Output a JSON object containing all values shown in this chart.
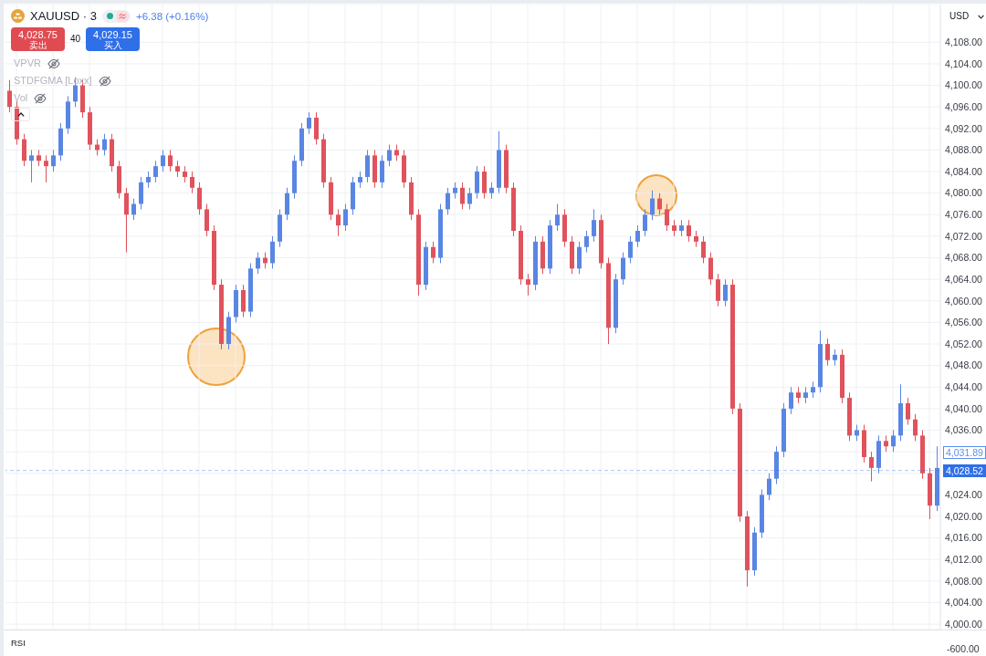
{
  "chart_data": {
    "type": "candlestick",
    "title": "XAUUSD · 3",
    "ylabel": "USD",
    "categories": [
      null,
      null,
      null,
      null,
      null,
      null,
      null,
      null,
      null,
      null,
      null,
      null,
      null,
      null,
      null,
      null,
      null,
      null,
      null,
      null,
      null,
      null,
      null,
      null,
      null,
      null,
      null,
      null,
      null,
      null,
      null,
      null,
      null,
      null,
      null,
      null,
      null,
      null,
      null,
      null,
      null,
      null,
      null,
      null,
      null,
      null,
      null,
      null,
      null,
      null,
      null,
      null,
      null,
      null,
      null,
      null,
      null,
      null,
      null,
      null,
      null,
      null,
      null,
      null,
      null,
      null,
      null,
      null,
      null,
      null,
      null,
      null,
      null,
      null,
      null,
      null,
      null,
      null,
      null,
      null,
      null,
      null,
      null,
      null,
      null,
      null,
      null,
      null,
      null,
      null,
      null,
      null,
      null,
      null,
      null,
      null,
      null,
      null,
      null,
      null,
      null,
      null,
      null,
      null,
      null,
      null,
      null,
      null,
      null,
      null,
      null,
      null,
      null,
      null,
      null,
      null,
      null,
      null,
      null,
      null,
      null,
      null,
      null,
      null,
      null,
      null,
      null,
      null
    ],
    "ohlc": [
      [
        4099,
        4101,
        4095,
        4096
      ],
      [
        4096,
        4097,
        4089,
        4090
      ],
      [
        4090,
        4091,
        4085,
        4086
      ],
      [
        4086,
        4088,
        4082,
        4087
      ],
      [
        4087,
        4088,
        4085,
        4086
      ],
      [
        4086,
        4087,
        4082,
        4085
      ],
      [
        4085,
        4088,
        4084,
        4087
      ],
      [
        4087,
        4093,
        4086,
        4092
      ],
      [
        4092,
        4098,
        4091,
        4097
      ],
      [
        4097,
        4101.5,
        4096,
        4100
      ],
      [
        4100,
        4101,
        4094,
        4095
      ],
      [
        4095,
        4096,
        4088,
        4089
      ],
      [
        4089,
        4090,
        4087,
        4088
      ],
      [
        4088,
        4091,
        4087,
        4090
      ],
      [
        4090,
        4091,
        4084,
        4085
      ],
      [
        4085,
        4086,
        4079,
        4080
      ],
      [
        4080,
        4081,
        4069,
        4076
      ],
      [
        4076,
        4079,
        4075,
        4078
      ],
      [
        4078,
        4083,
        4077,
        4082
      ],
      [
        4082,
        4084,
        4081,
        4083
      ],
      [
        4083,
        4086,
        4082,
        4085
      ],
      [
        4085,
        4088,
        4084,
        4087
      ],
      [
        4087,
        4088,
        4084,
        4085
      ],
      [
        4085,
        4086,
        4083,
        4084
      ],
      [
        4084,
        4085,
        4082,
        4083
      ],
      [
        4083,
        4084,
        4080,
        4081
      ],
      [
        4081,
        4082,
        4076,
        4077
      ],
      [
        4077,
        4078,
        4072,
        4073
      ],
      [
        4073,
        4074,
        4062,
        4063
      ],
      [
        4063,
        4064,
        4051,
        4052
      ],
      [
        4052,
        4058,
        4051,
        4057
      ],
      [
        4057,
        4063,
        4056,
        4062
      ],
      [
        4062,
        4063,
        4057,
        4058
      ],
      [
        4058,
        4067,
        4057,
        4066
      ],
      [
        4066,
        4069,
        4065,
        4068
      ],
      [
        4068,
        4069,
        4066,
        4067
      ],
      [
        4067,
        4072,
        4066,
        4071
      ],
      [
        4071,
        4077,
        4070,
        4076
      ],
      [
        4076,
        4081,
        4075,
        4080
      ],
      [
        4080,
        4087,
        4079,
        4086
      ],
      [
        4086,
        4093,
        4085,
        4092
      ],
      [
        4092,
        4095,
        4091,
        4094
      ],
      [
        4094,
        4095,
        4089,
        4090
      ],
      [
        4090,
        4091,
        4081,
        4082
      ],
      [
        4082,
        4083,
        4075,
        4076
      ],
      [
        4076,
        4077,
        4072,
        4074
      ],
      [
        4074,
        4078,
        4073,
        4077
      ],
      [
        4077,
        4083,
        4076,
        4082
      ],
      [
        4082,
        4084,
        4081,
        4083
      ],
      [
        4083,
        4088,
        4082,
        4087
      ],
      [
        4087,
        4088,
        4081,
        4082
      ],
      [
        4082,
        4087,
        4081,
        4086
      ],
      [
        4086,
        4089,
        4085,
        4088
      ],
      [
        4088,
        4089,
        4086,
        4087
      ],
      [
        4087,
        4088,
        4081,
        4082
      ],
      [
        4082,
        4083,
        4075,
        4076
      ],
      [
        4076,
        4077,
        4061,
        4063
      ],
      [
        4063,
        4071,
        4062,
        4070
      ],
      [
        4070,
        4071,
        4067,
        4068
      ],
      [
        4068,
        4078,
        4067,
        4077
      ],
      [
        4077,
        4081,
        4076,
        4080
      ],
      [
        4080,
        4082,
        4079,
        4081
      ],
      [
        4081,
        4082,
        4077,
        4078
      ],
      [
        4078,
        4081,
        4077,
        4080
      ],
      [
        4080,
        4085,
        4079,
        4084
      ],
      [
        4084,
        4085,
        4079,
        4080
      ],
      [
        4080,
        4082,
        4079,
        4081
      ],
      [
        4081,
        4091.5,
        4080,
        4088
      ],
      [
        4088,
        4089,
        4080,
        4081
      ],
      [
        4081,
        4082,
        4072,
        4073
      ],
      [
        4073,
        4074,
        4063,
        4064
      ],
      [
        4064,
        4065,
        4061,
        4063
      ],
      [
        4063,
        4072,
        4062,
        4071
      ],
      [
        4071,
        4072,
        4065,
        4066
      ],
      [
        4066,
        4075,
        4065,
        4074
      ],
      [
        4074,
        4078,
        4073,
        4076
      ],
      [
        4076,
        4077,
        4070,
        4071
      ],
      [
        4071,
        4072,
        4065,
        4066
      ],
      [
        4066,
        4071,
        4065,
        4070
      ],
      [
        4070,
        4073,
        4069,
        4072
      ],
      [
        4072,
        4077,
        4071,
        4075
      ],
      [
        4075,
        4076,
        4066,
        4067
      ],
      [
        4067,
        4068,
        4052,
        4055
      ],
      [
        4055,
        4065,
        4054,
        4064
      ],
      [
        4064,
        4069,
        4063,
        4068
      ],
      [
        4068,
        4072,
        4067,
        4071
      ],
      [
        4071,
        4074,
        4070,
        4073
      ],
      [
        4073,
        4077,
        4072,
        4076
      ],
      [
        4076,
        4080.5,
        4075,
        4079
      ],
      [
        4079,
        4080,
        4076,
        4077
      ],
      [
        4077,
        4078,
        4073,
        4074
      ],
      [
        4074,
        4075,
        4072,
        4073
      ],
      [
        4073,
        4075,
        4072,
        4074
      ],
      [
        4074,
        4075,
        4071,
        4072
      ],
      [
        4072,
        4073,
        4070,
        4071
      ],
      [
        4071,
        4072,
        4067,
        4068
      ],
      [
        4068,
        4069,
        4063,
        4064
      ],
      [
        4064,
        4065,
        4059,
        4060
      ],
      [
        4060,
        4064,
        4059,
        4063
      ],
      [
        4063,
        4064,
        4039,
        4040
      ],
      [
        4040,
        4041,
        4019,
        4020
      ],
      [
        4020,
        4021,
        4007,
        4010
      ],
      [
        4010,
        4018,
        4009,
        4017
      ],
      [
        4017,
        4025,
        4016,
        4024
      ],
      [
        4024,
        4028,
        4023,
        4027
      ],
      [
        4027,
        4033,
        4026,
        4032
      ],
      [
        4032,
        4041,
        4031,
        4040
      ],
      [
        4040,
        4044,
        4039,
        4043
      ],
      [
        4043,
        4044,
        4041,
        4042
      ],
      [
        4042,
        4044,
        4041,
        4043
      ],
      [
        4043,
        4045,
        4042,
        4044
      ],
      [
        4044,
        4054.5,
        4043,
        4052
      ],
      [
        4052,
        4053,
        4048,
        4049
      ],
      [
        4049,
        4051,
        4048,
        4050
      ],
      [
        4050,
        4051,
        4041,
        4042
      ],
      [
        4042,
        4043,
        4034,
        4035
      ],
      [
        4035,
        4037,
        4034,
        4036
      ],
      [
        4036,
        4037,
        4030,
        4031
      ],
      [
        4031,
        4032,
        4026.5,
        4029
      ],
      [
        4029,
        4035,
        4028,
        4034
      ],
      [
        4034,
        4035,
        4032,
        4033
      ],
      [
        4033,
        4036,
        4032,
        4035
      ],
      [
        4035,
        4044.5,
        4034,
        4041
      ],
      [
        4041,
        4042,
        4037,
        4038
      ],
      [
        4038,
        4039,
        4034,
        4035
      ],
      [
        4035,
        4036,
        4027,
        4028
      ],
      [
        4028,
        4029,
        4019.5,
        4022
      ],
      [
        4022,
        4033,
        4021,
        4029
      ]
    ],
    "colors": [
      "#e0525c",
      "#e0525c",
      "#e0525c",
      "#5a86e3",
      "#e0525c",
      "#e0525c",
      "#5a86e3",
      "#5a86e3",
      "#5a86e3",
      "#5a86e3",
      "#e0525c",
      "#e0525c",
      "#e0525c",
      "#5a86e3",
      "#e0525c",
      "#e0525c",
      "#e0525c",
      "#5a86e3",
      "#5a86e3",
      "#5a86e3",
      "#5a86e3",
      "#5a86e3",
      "#e0525c",
      "#e0525c",
      "#e0525c",
      "#e0525c",
      "#e0525c",
      "#e0525c",
      "#e0525c",
      "#e0525c",
      "#5a86e3",
      "#5a86e3",
      "#e0525c",
      "#5a86e3",
      "#5a86e3",
      "#e0525c",
      "#5a86e3",
      "#5a86e3",
      "#5a86e3",
      "#5a86e3",
      "#5a86e3",
      "#5a86e3",
      "#e0525c",
      "#e0525c",
      "#e0525c",
      "#e0525c",
      "#5a86e3",
      "#5a86e3",
      "#5a86e3",
      "#5a86e3",
      "#e0525c",
      "#5a86e3",
      "#5a86e3",
      "#e0525c",
      "#e0525c",
      "#e0525c",
      "#e0525c",
      "#5a86e3",
      "#e0525c",
      "#5a86e3",
      "#5a86e3",
      "#5a86e3",
      "#e0525c",
      "#5a86e3",
      "#5a86e3",
      "#e0525c",
      "#5a86e3",
      "#5a86e3",
      "#e0525c",
      "#e0525c",
      "#e0525c",
      "#e0525c",
      "#5a86e3",
      "#e0525c",
      "#5a86e3",
      "#5a86e3",
      "#e0525c",
      "#e0525c",
      "#5a86e3",
      "#5a86e3",
      "#5a86e3",
      "#e0525c",
      "#e0525c",
      "#5a86e3",
      "#5a86e3",
      "#5a86e3",
      "#5a86e3",
      "#5a86e3",
      "#5a86e3",
      "#e0525c",
      "#e0525c",
      "#e0525c",
      "#5a86e3",
      "#e0525c",
      "#e0525c",
      "#e0525c",
      "#e0525c",
      "#e0525c",
      "#5a86e3",
      "#e0525c",
      "#e0525c",
      "#e0525c",
      "#5a86e3",
      "#5a86e3",
      "#5a86e3",
      "#5a86e3",
      "#5a86e3",
      "#5a86e3",
      "#e0525c",
      "#5a86e3",
      "#5a86e3",
      "#5a86e3",
      "#e0525c",
      "#5a86e3",
      "#e0525c",
      "#e0525c",
      "#5a86e3",
      "#e0525c",
      "#e0525c",
      "#5a86e3",
      "#e0525c",
      "#5a86e3",
      "#5a86e3",
      "#e0525c",
      "#e0525c",
      "#e0525c",
      "#e0525c",
      "#5a86e3"
    ],
    "ylim": [
      3999,
      4115
    ],
    "yticks": [
      {
        "value": 4000,
        "label": "4,000.00"
      },
      {
        "value": 4004,
        "label": "4,004.00"
      },
      {
        "value": 4008,
        "label": "4,008.00"
      },
      {
        "value": 4012,
        "label": "4,012.00"
      },
      {
        "value": 4016,
        "label": "4,016.00"
      },
      {
        "value": 4020,
        "label": "4,020.00"
      },
      {
        "value": 4024,
        "label": "4,024.00"
      },
      {
        "value": 4028,
        "label": null
      },
      {
        "value": 4032,
        "label": null
      },
      {
        "value": 4036,
        "label": "4,036.00"
      },
      {
        "value": 4040,
        "label": "4,040.00"
      },
      {
        "value": 4044,
        "label": "4,044.00"
      },
      {
        "value": 4048,
        "label": "4,048.00"
      },
      {
        "value": 4052,
        "label": "4,052.00"
      },
      {
        "value": 4056,
        "label": "4,056.00"
      },
      {
        "value": 4060,
        "label": "4,060.00"
      },
      {
        "value": 4064,
        "label": "4,064.00"
      },
      {
        "value": 4068,
        "label": "4,068.00"
      },
      {
        "value": 4072,
        "label": "4,072.00"
      },
      {
        "value": 4076,
        "label": "4,076.00"
      },
      {
        "value": 4080,
        "label": "4,080.00"
      },
      {
        "value": 4084,
        "label": "4,084.00"
      },
      {
        "value": 4088,
        "label": "4,088.00"
      },
      {
        "value": 4092,
        "label": "4,092.00"
      },
      {
        "value": 4096,
        "label": "4,096.00"
      },
      {
        "value": 4100,
        "label": "4,100.00"
      },
      {
        "value": 4104,
        "label": "4,104.00"
      },
      {
        "value": 4108,
        "label": "4,108.00"
      }
    ],
    "grid": true,
    "tick_labels": "y",
    "ref_lines": [
      {
        "axis": "y",
        "value": 4028.52,
        "label": "4,028.52",
        "color": "#2f6fe8",
        "line_style": "dashed"
      }
    ],
    "annotations": [
      "+6.38 (+0.16%)",
      "4,028.75",
      "卖出",
      "40",
      "4,029.15",
      "买入",
      "VPVR",
      "STDFGMA [Loxx]",
      "Vol",
      "4,031.89",
      "RSI",
      "-600.00"
    ]
  }
}
